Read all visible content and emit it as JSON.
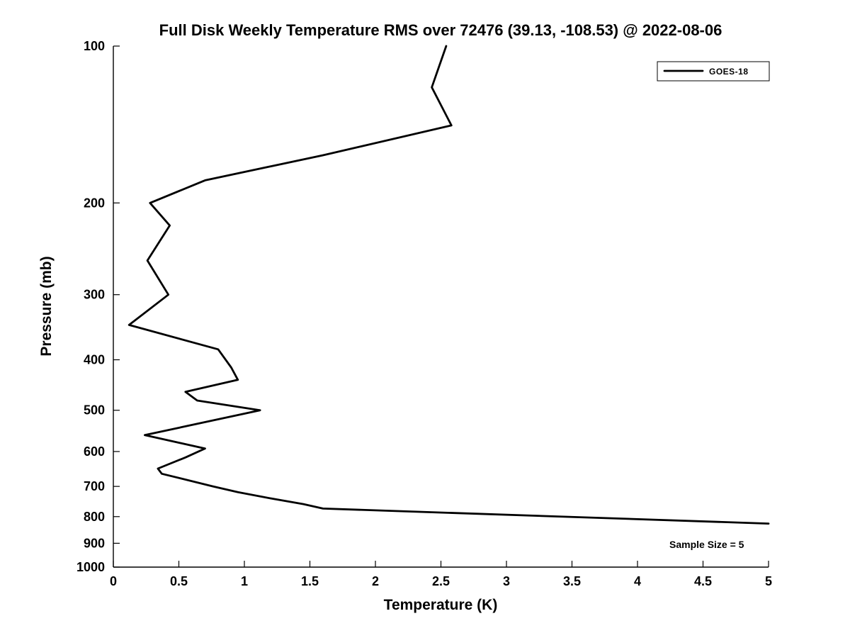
{
  "chart_data": {
    "type": "line",
    "title": "Full Disk Weekly Temperature RMS over 72476 (39.13, -108.53) @ 2022-08-06",
    "xlabel": "Temperature (K)",
    "ylabel": "Pressure (mb)",
    "xlim": [
      0,
      5
    ],
    "ylim": [
      100,
      1000
    ],
    "y_scale": "log",
    "y_inverted": true,
    "grid": "off",
    "xticks": {
      "values": [
        0,
        0.5,
        1,
        1.5,
        2,
        2.5,
        3,
        3.5,
        4,
        4.5,
        5
      ],
      "labels": [
        "0",
        "0.5",
        "1",
        "1.5",
        "2",
        "2.5",
        "3",
        "3.5",
        "4",
        "4.5",
        "5"
      ]
    },
    "yticks": {
      "values": [
        100,
        200,
        300,
        400,
        500,
        600,
        700,
        800,
        900,
        1000
      ],
      "labels": [
        "100",
        "200",
        "300",
        "400",
        "500",
        "600",
        "700",
        "800",
        "900",
        "1000"
      ]
    },
    "legend": {
      "position": "top-right",
      "entries": [
        {
          "label": "GOES-18",
          "color": "#000000"
        }
      ]
    },
    "annotation": "Sample Size = 5",
    "line_color": "#000000",
    "series": [
      {
        "name": "GOES-18",
        "color": "#000000",
        "points_temperature_pressure": [
          [
            2.54,
            100
          ],
          [
            2.43,
            120
          ],
          [
            2.58,
            142
          ],
          [
            1.6,
            162
          ],
          [
            0.7,
            181
          ],
          [
            0.28,
            200
          ],
          [
            0.43,
            221
          ],
          [
            0.26,
            258
          ],
          [
            0.42,
            300
          ],
          [
            0.12,
            343
          ],
          [
            0.8,
            382
          ],
          [
            0.9,
            414
          ],
          [
            0.95,
            437
          ],
          [
            0.55,
            461
          ],
          [
            0.64,
            479
          ],
          [
            1.12,
            500
          ],
          [
            0.24,
            558
          ],
          [
            0.7,
            592
          ],
          [
            0.55,
            616
          ],
          [
            0.34,
            647
          ],
          [
            0.37,
            662
          ],
          [
            0.76,
            700
          ],
          [
            0.95,
            718
          ],
          [
            1.2,
            738
          ],
          [
            1.45,
            757
          ],
          [
            1.6,
            772
          ],
          [
            5.0,
            825
          ]
        ]
      }
    ]
  }
}
